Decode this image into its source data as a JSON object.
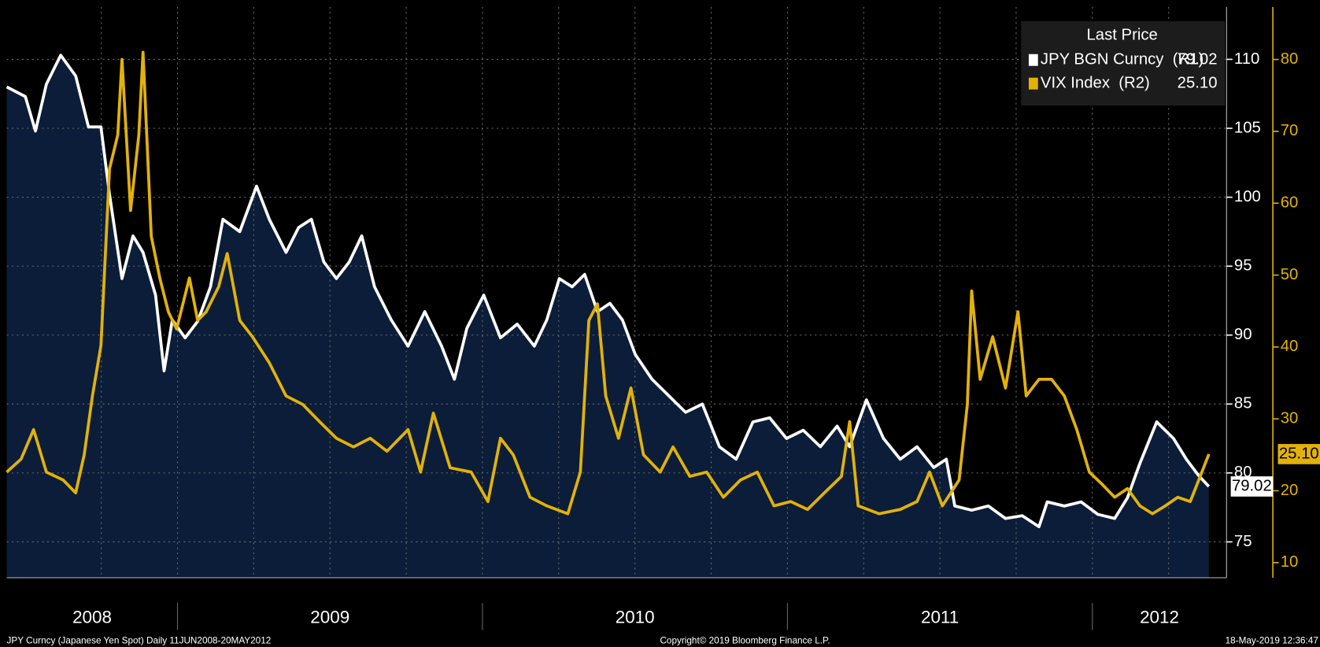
{
  "chart_data": {
    "type": "line",
    "legend_title": "Last Price",
    "footer": {
      "left": "JPY Curncy (Japanese Yen Spot)  Daily 11JUN2008-20MAY2012",
      "center": "Copyright© 2019 Bloomberg Finance L.P.",
      "right": "18-May-2019 12:36:47"
    },
    "xlim": [
      2008.44,
      2012.44
    ],
    "xticks": [
      2009,
      2010,
      2011,
      2012
    ],
    "year_labels": [
      "2008",
      "2009",
      "2010",
      "2011",
      "2012"
    ],
    "xgrid": [
      2008.75,
      2009,
      2009.25,
      2009.5,
      2009.75,
      2010,
      2010.25,
      2010.5,
      2010.75,
      2011,
      2011.25,
      2011.5,
      2011.75,
      2012,
      2012.25
    ],
    "grid": true,
    "ylim": [
      72.4,
      113.8
    ],
    "yticks": [
      75,
      80,
      85,
      90,
      95,
      100,
      105,
      110
    ],
    "y2lim": [
      7.9,
      87.3
    ],
    "y2ticks": [
      10,
      20,
      30,
      40,
      50,
      60,
      70,
      80
    ],
    "series": [
      {
        "name": "JPY BGN Curncy  (R1)",
        "color": "#ffffff",
        "area_color": "#0b1d38",
        "last_label": "79.02",
        "x": [
          2008.44,
          2008.501,
          2008.534,
          2008.57,
          2008.617,
          2008.666,
          2008.708,
          2008.749,
          2008.777,
          2008.818,
          2008.854,
          2008.887,
          2008.928,
          2008.956,
          2008.983,
          2009.025,
          2009.066,
          2009.108,
          2009.149,
          2009.204,
          2009.259,
          2009.301,
          2009.356,
          2009.397,
          2009.439,
          2009.48,
          2009.521,
          2009.563,
          2009.604,
          2009.646,
          2009.701,
          2009.756,
          2009.811,
          2009.866,
          2009.908,
          2009.949,
          2010.004,
          2010.059,
          2010.114,
          2010.17,
          2010.211,
          2010.252,
          2010.294,
          2010.335,
          2010.377,
          2010.418,
          2010.459,
          2010.501,
          2010.556,
          2010.611,
          2010.666,
          2010.721,
          2010.777,
          2010.832,
          2010.887,
          2010.942,
          2010.997,
          2011.052,
          2011.108,
          2011.163,
          2011.204,
          2011.259,
          2011.315,
          2011.37,
          2011.425,
          2011.48,
          2011.521,
          2011.549,
          2011.604,
          2011.659,
          2011.715,
          2011.77,
          2011.825,
          2011.852,
          2011.908,
          2011.963,
          2012.018,
          2012.073,
          2012.115,
          2012.156,
          2012.211,
          2012.266,
          2012.308,
          2012.349,
          2012.382
        ],
        "values": [
          108,
          107.3,
          104.8,
          108.2,
          110.3,
          108.8,
          105.1,
          105.1,
          100.2,
          94.1,
          97.2,
          96,
          92.9,
          87.4,
          91.1,
          89.8,
          91,
          93.5,
          98.4,
          97.5,
          100.8,
          98.4,
          96,
          97.8,
          98.4,
          95.3,
          94.1,
          95.3,
          97.2,
          93.5,
          91.1,
          89.2,
          91.7,
          89.2,
          86.8,
          90.5,
          92.9,
          89.8,
          90.8,
          89.2,
          91.1,
          94.1,
          93.5,
          94.4,
          91.7,
          92.3,
          91.1,
          88.6,
          86.8,
          85.6,
          84.4,
          85,
          81.9,
          81,
          83.7,
          84,
          82.5,
          83.1,
          81.9,
          83.4,
          81.9,
          85.3,
          82.5,
          81,
          81.9,
          80.4,
          81,
          77.6,
          77.3,
          77.6,
          76.7,
          76.9,
          76.1,
          77.9,
          77.6,
          77.9,
          77,
          76.7,
          78.2,
          80.7,
          83.7,
          82.5,
          81,
          79.8,
          79.02
        ]
      },
      {
        "name": "VIX Index  (R2)",
        "color": "#e2b208",
        "axis": "y2",
        "last_label": "25.10",
        "x": [
          2008.44,
          2008.487,
          2008.528,
          2008.57,
          2008.625,
          2008.666,
          2008.694,
          2008.721,
          2008.749,
          2008.777,
          2008.804,
          2008.818,
          2008.846,
          2008.873,
          2008.887,
          2008.914,
          2008.942,
          2008.97,
          2008.997,
          2009.039,
          2009.066,
          2009.094,
          2009.135,
          2009.163,
          2009.204,
          2009.246,
          2009.301,
          2009.356,
          2009.411,
          2009.466,
          2009.521,
          2009.577,
          2009.632,
          2009.687,
          2009.756,
          2009.797,
          2009.839,
          2009.894,
          2009.963,
          2010.018,
          2010.059,
          2010.101,
          2010.156,
          2010.211,
          2010.28,
          2010.321,
          2010.349,
          2010.377,
          2010.404,
          2010.446,
          2010.487,
          2010.528,
          2010.583,
          2010.625,
          2010.68,
          2010.735,
          2010.79,
          2010.846,
          2010.901,
          2010.956,
          2011.011,
          2011.066,
          2011.121,
          2011.177,
          2011.204,
          2011.232,
          2011.301,
          2011.37,
          2011.425,
          2011.466,
          2011.508,
          2011.563,
          2011.59,
          2011.604,
          2011.632,
          2011.673,
          2011.715,
          2011.756,
          2011.783,
          2011.825,
          2011.866,
          2011.908,
          2011.949,
          2011.99,
          2012.032,
          2012.073,
          2012.115,
          2012.156,
          2012.197,
          2012.239,
          2012.28,
          2012.321,
          2012.349,
          2012.382
        ],
        "values": [
          22.6,
          24.4,
          28.5,
          22.6,
          21.5,
          19.7,
          25,
          33.2,
          40.2,
          64.8,
          69.5,
          80,
          59,
          69.5,
          81,
          55.4,
          49.6,
          44.9,
          42.5,
          49.6,
          43.7,
          44.9,
          48.4,
          53,
          43.7,
          41.4,
          37.8,
          33.2,
          32,
          29.6,
          27.3,
          26.1,
          27.3,
          25.5,
          28.5,
          22.6,
          30.8,
          23.2,
          22.6,
          18.5,
          27.3,
          25,
          19.1,
          17.9,
          16.8,
          22.6,
          43.7,
          46,
          33.2,
          27.3,
          34.3,
          25,
          22.6,
          26.1,
          22,
          22.6,
          19.1,
          21.5,
          22.6,
          17.9,
          18.5,
          17.4,
          19.7,
          22,
          29.6,
          17.9,
          16.8,
          17.4,
          18.5,
          22.6,
          17.9,
          21.5,
          32,
          47.8,
          35.5,
          41.4,
          34.3,
          44.9,
          33.2,
          35.5,
          35.5,
          33.2,
          28.5,
          22.6,
          20.9,
          19.1,
          20.3,
          17.9,
          16.8,
          17.9,
          19.1,
          18.5,
          21.5,
          25.1
        ]
      }
    ]
  }
}
